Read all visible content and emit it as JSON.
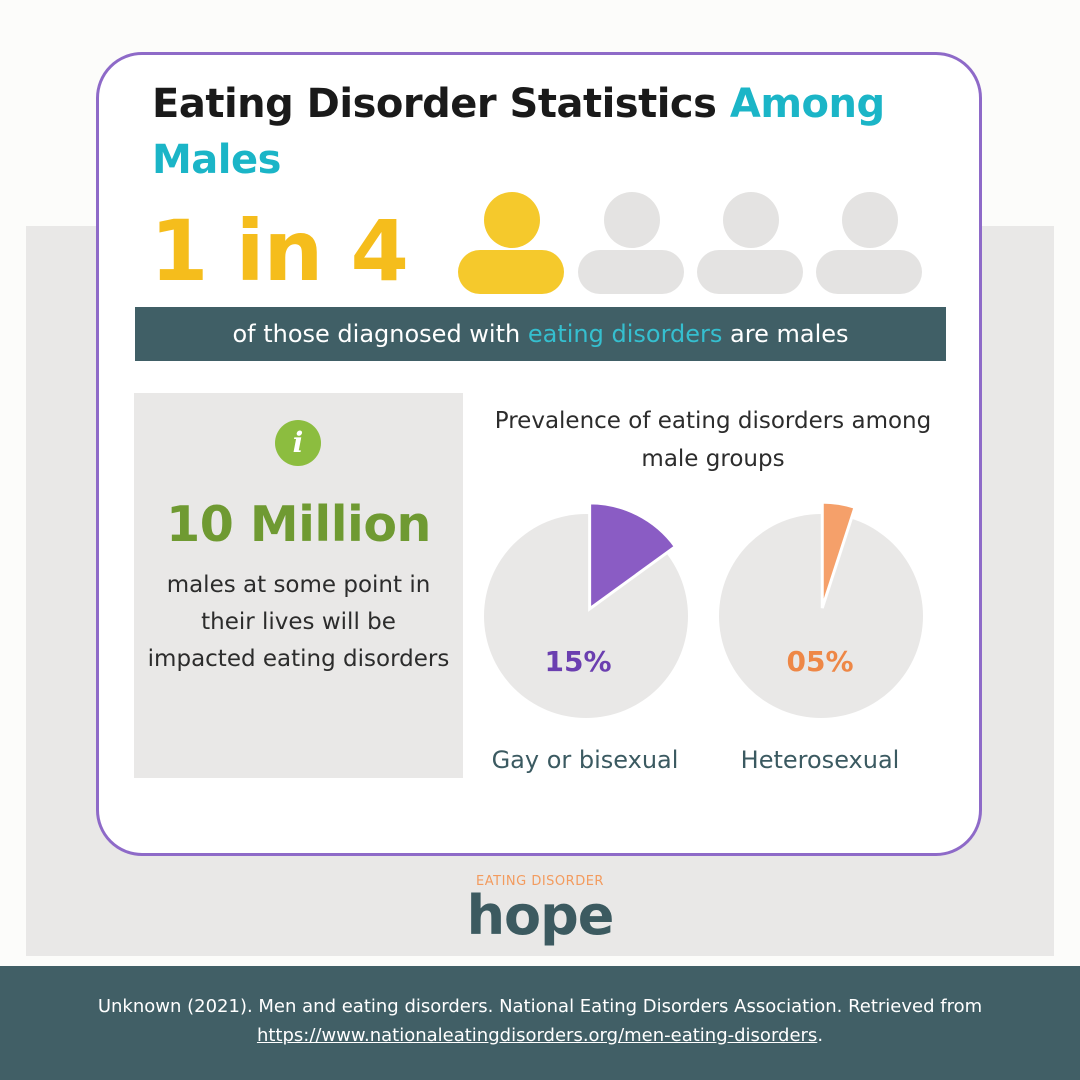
{
  "title": {
    "main": "Eating Disorder Statistics",
    "accent": "Among Males"
  },
  "ratio": {
    "text": "1 in 4",
    "highlighted_of": 1,
    "total": 4,
    "icons": [
      "person-icon",
      "person-icon",
      "person-icon",
      "person-icon"
    ]
  },
  "banner": {
    "before": "of those diagnosed with",
    "highlight": "eating disorders",
    "after": "are males"
  },
  "info": {
    "icon": "info-icon",
    "icon_glyph": "i",
    "stat": "10 Million",
    "text": "males at some point in their lives will be impacted eating disorders"
  },
  "chart_data": {
    "type": "pie",
    "title": "Prevalence of eating disorders among male groups",
    "charts": [
      {
        "label": "Gay or bisexual",
        "value": 15,
        "display": "15%",
        "color": "#8a5cc4",
        "label_color": "#6b3fb0"
      },
      {
        "label": "Heterosexual",
        "value": 5,
        "display": "05%",
        "color": "#f5a06a",
        "label_color": "#ee8746"
      }
    ],
    "remainder_color": "#e9e8e7"
  },
  "logo": {
    "top": "EATING DISORDER",
    "word": "hope"
  },
  "footer": {
    "citation": "Unknown (2021). Men and eating disorders. National Eating Disorders Association. Retrieved from",
    "link": "https://www.nationaleatingdisorders.org/men-eating-disorders",
    "end": "."
  },
  "colors": {
    "accent_teal": "#1bb5c7",
    "stat_yellow": "#f5bd1c",
    "banner_bg": "#405f66",
    "stat_green": "#6f9a32",
    "border_purple": "#8e6ac8"
  }
}
